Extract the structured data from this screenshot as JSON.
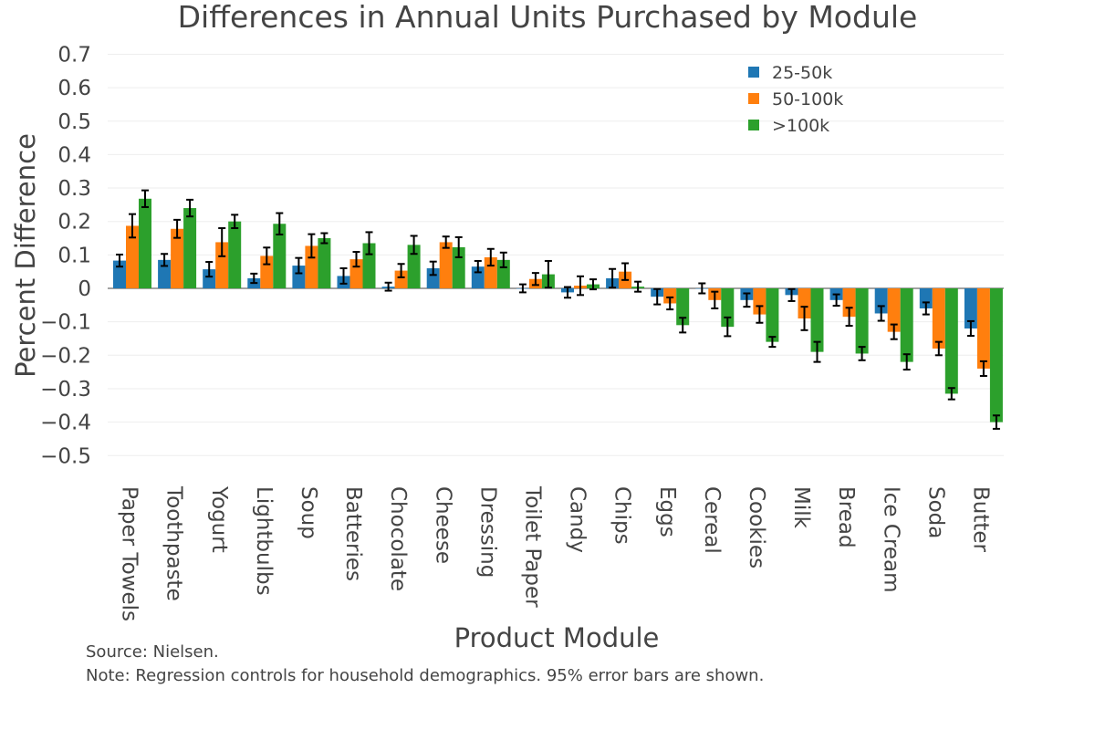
{
  "chart_data": {
    "type": "bar",
    "title": "Differences in Annual Units Purchased by Module",
    "xlabel": "Product Module",
    "ylabel": "Percent Difference",
    "ylim": [
      -0.55,
      0.7
    ],
    "yticks": [
      0.7,
      0.6,
      0.5,
      0.4,
      0.3,
      0.2,
      0.1,
      0,
      -0.1,
      -0.2,
      -0.3,
      -0.4,
      -0.5
    ],
    "ytick_labels": [
      "0.7",
      "0.6",
      "0.5",
      "0.4",
      "0.3",
      "0.2",
      "0.1",
      "0",
      "−0.1",
      "−0.2",
      "−0.3",
      "−0.4",
      "−0.5"
    ],
    "grid": true,
    "legend_position": "top-right",
    "categories": [
      "Paper Towels",
      "Toothpaste",
      "Yogurt",
      "Lightbulbs",
      "Soup",
      "Batteries",
      "Chocolate",
      "Cheese",
      "Dressing",
      "Toilet Paper",
      "Candy",
      "Chips",
      "Eggs",
      "Cereal",
      "Cookies",
      "Milk",
      "Bread",
      "Ice Cream",
      "Soda",
      "Butter"
    ],
    "series": [
      {
        "name": "25-50k",
        "color": "#1f77b4",
        "values": [
          0.083,
          0.085,
          0.057,
          0.03,
          0.068,
          0.037,
          0.005,
          0.06,
          0.065,
          0.0,
          -0.012,
          0.03,
          -0.025,
          0.0,
          -0.035,
          -0.02,
          -0.035,
          -0.075,
          -0.06,
          -0.12
        ],
        "errors": [
          0.018,
          0.018,
          0.022,
          0.014,
          0.023,
          0.023,
          0.012,
          0.02,
          0.017,
          0.012,
          0.016,
          0.028,
          0.023,
          0.015,
          0.02,
          0.018,
          0.017,
          0.022,
          0.018,
          0.022
        ]
      },
      {
        "name": "50-100k",
        "color": "#ff7f0e",
        "values": [
          0.187,
          0.178,
          0.138,
          0.097,
          0.127,
          0.087,
          0.053,
          0.138,
          0.093,
          0.028,
          0.008,
          0.05,
          -0.045,
          -0.035,
          -0.078,
          -0.09,
          -0.085,
          -0.13,
          -0.18,
          -0.24
        ],
        "errors": [
          0.035,
          0.027,
          0.042,
          0.025,
          0.035,
          0.022,
          0.02,
          0.017,
          0.025,
          0.018,
          0.028,
          0.025,
          0.018,
          0.025,
          0.025,
          0.035,
          0.027,
          0.022,
          0.02,
          0.022
        ]
      },
      {
        "name": ">100k",
        "color": "#2ca02c",
        "values": [
          0.268,
          0.24,
          0.2,
          0.193,
          0.15,
          0.135,
          0.13,
          0.123,
          0.085,
          0.042,
          0.012,
          0.005,
          -0.11,
          -0.115,
          -0.16,
          -0.19,
          -0.195,
          -0.22,
          -0.315,
          -0.4
        ],
        "errors": [
          0.025,
          0.025,
          0.02,
          0.032,
          0.015,
          0.033,
          0.027,
          0.03,
          0.022,
          0.04,
          0.015,
          0.015,
          0.022,
          0.028,
          0.015,
          0.03,
          0.02,
          0.023,
          0.017,
          0.02
        ]
      }
    ]
  },
  "legend": {
    "items": [
      "25-50k",
      "50-100k",
      ">100k"
    ]
  },
  "notes": {
    "source": "Source: Nielsen.",
    "note": "Note: Regression controls for household demographics. 95% error bars are shown."
  }
}
